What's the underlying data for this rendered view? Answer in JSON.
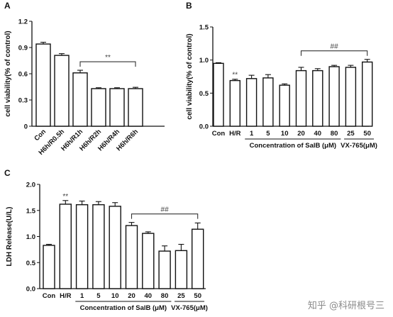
{
  "watermark": "知乎 @科研根号三",
  "chart_data": [
    {
      "type": "bar",
      "panel_label": "A",
      "ylabel": "cell viability(% of control)",
      "xlabel": "",
      "ylim": [
        0,
        1.2
      ],
      "yticks": [
        "0",
        "0.3",
        "0.6",
        "0.9",
        "1.2"
      ],
      "categories": [
        "Con",
        "H6h/R0.5h",
        "H6h/R1h",
        "H6h/R2h",
        "H6h/R4h",
        "H6h/R6h"
      ],
      "values": [
        0.94,
        0.81,
        0.61,
        0.43,
        0.43,
        0.43
      ],
      "errors": [
        0.02,
        0.02,
        0.03,
        0.01,
        0.01,
        0.015
      ],
      "annotations": [
        {
          "text": "**",
          "bracket_from": 2,
          "bracket_to": 5
        }
      ]
    },
    {
      "type": "bar",
      "panel_label": "B",
      "ylabel": "cell viability(% of control)",
      "ylim": [
        0,
        1.5
      ],
      "yticks": [
        "0.0",
        "0.5",
        "1.0",
        "1.5"
      ],
      "categories": [
        "Con",
        "H/R",
        "1",
        "5",
        "10",
        "20",
        "40",
        "80",
        "25",
        "50"
      ],
      "values": [
        0.95,
        0.69,
        0.72,
        0.73,
        0.62,
        0.84,
        0.84,
        0.9,
        0.89,
        0.97
      ],
      "errors": [
        0.01,
        0.02,
        0.05,
        0.05,
        0.02,
        0.05,
        0.03,
        0.02,
        0.03,
        0.04
      ],
      "annotations": [
        {
          "text": "**",
          "bar": 1
        },
        {
          "text": "##",
          "bracket_from": 5,
          "bracket_to": 9
        }
      ],
      "group_labels": [
        {
          "text": "Concentration of SalB (μM)",
          "from": 2,
          "to": 7
        },
        {
          "text": "VX-765(μM)",
          "from": 8,
          "to": 9
        }
      ]
    },
    {
      "type": "bar",
      "panel_label": "C",
      "ylabel": "LDH Release(U/L)",
      "ylim": [
        0,
        2.0
      ],
      "yticks": [
        "0.0",
        "0.5",
        "1.0",
        "1.5",
        "2.0"
      ],
      "categories": [
        "Con",
        "H/R",
        "1",
        "5",
        "10",
        "20",
        "40",
        "80",
        "25",
        "50"
      ],
      "values": [
        0.83,
        1.62,
        1.61,
        1.61,
        1.58,
        1.21,
        1.06,
        0.72,
        0.73,
        1.14
      ],
      "errors": [
        0.02,
        0.07,
        0.07,
        0.06,
        0.07,
        0.06,
        0.03,
        0.1,
        0.12,
        0.12
      ],
      "annotations": [
        {
          "text": "**",
          "bar": 1
        },
        {
          "text": "##",
          "bracket_from": 5,
          "bracket_to": 9
        }
      ],
      "group_labels": [
        {
          "text": "Concentration of SalB (μM)",
          "from": 2,
          "to": 7
        },
        {
          "text": "VX-765(μM)",
          "from": 8,
          "to": 9
        }
      ]
    }
  ]
}
